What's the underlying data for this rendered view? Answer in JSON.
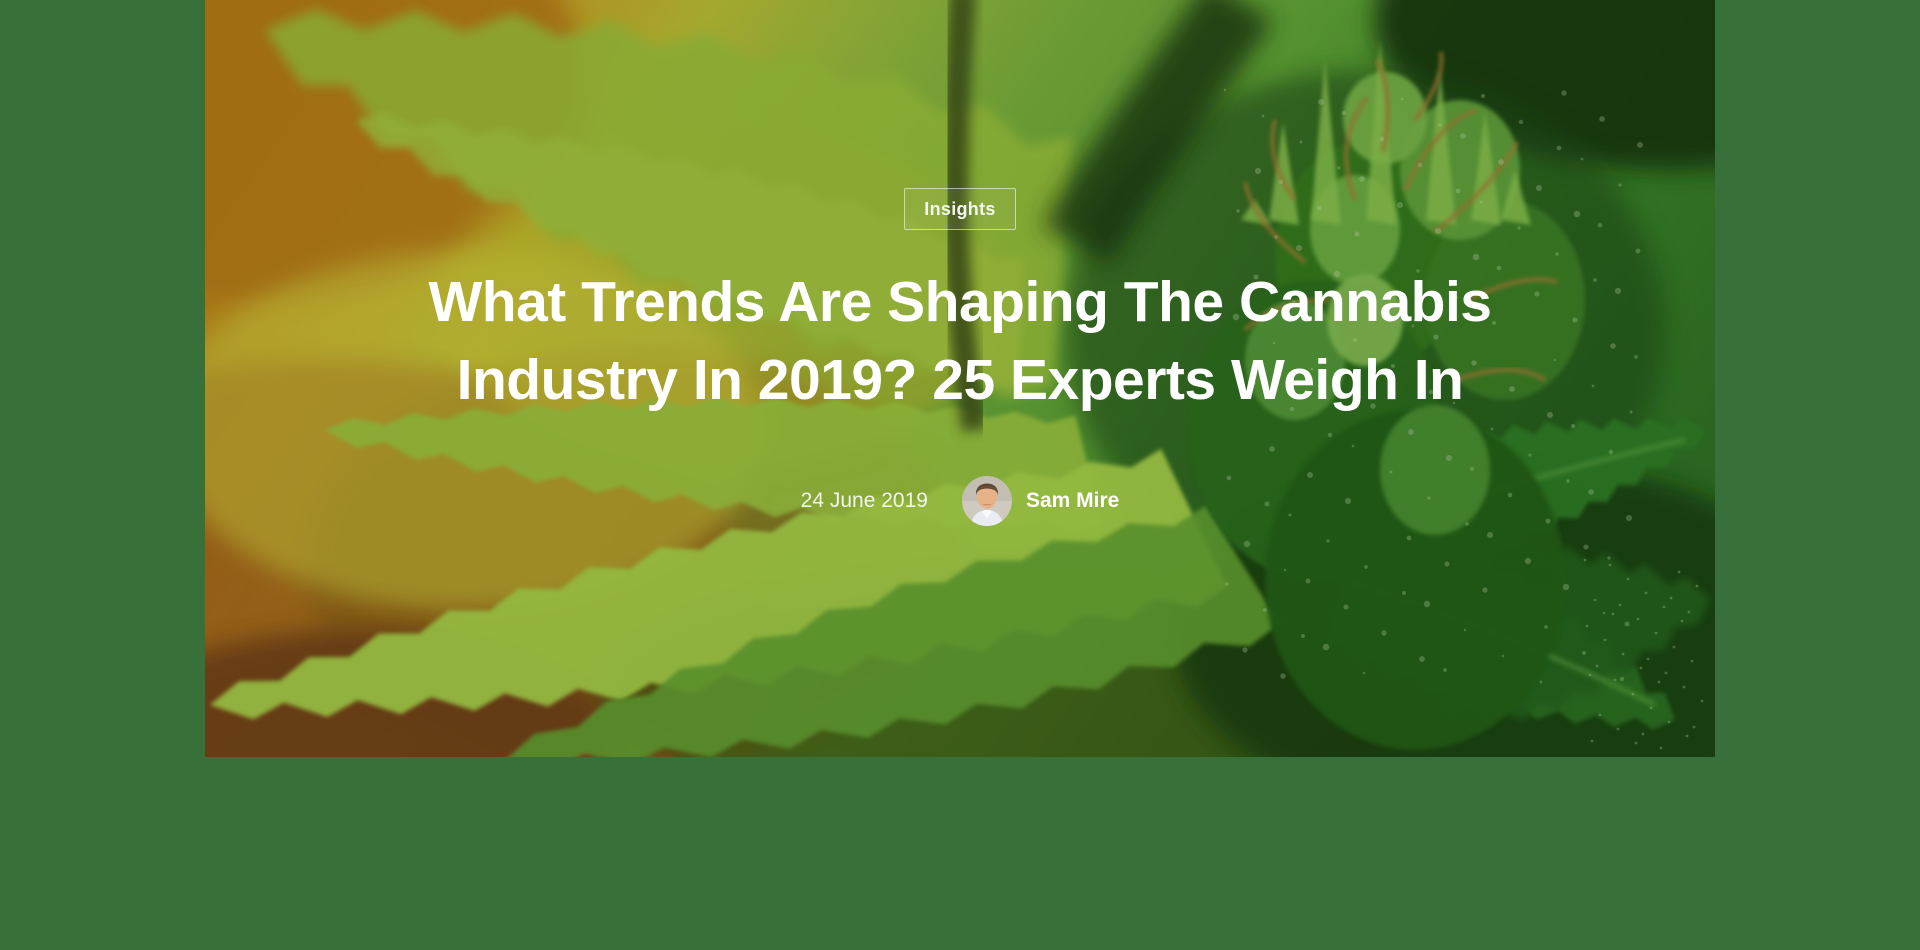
{
  "colors": {
    "page_background": "#377139",
    "text": "#ffffff",
    "badge_border": "rgba(255,255,255,0.55)"
  },
  "hero": {
    "category_badge": "Insights",
    "title": "What Trends Are Shaping The Cannabis Industry In 2019? 25 Experts Weigh In",
    "date": "24 June 2019",
    "author": "Sam Mire",
    "image_description": "cannabis-plant-photo",
    "avatar_icon": "author-photo"
  }
}
